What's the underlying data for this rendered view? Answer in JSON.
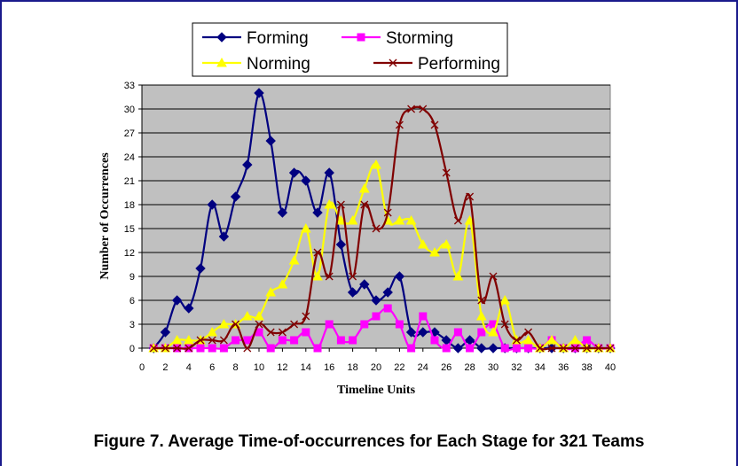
{
  "caption": "Figure 7.  Average Time-of-occurrences for Each Stage for 321 Teams",
  "chart_data": {
    "type": "line",
    "title": "",
    "xlabel": "Timeline Units",
    "ylabel": "Number of Occurrences",
    "xlim": [
      0,
      40
    ],
    "ylim": [
      0,
      33
    ],
    "xticks": [
      0,
      2,
      4,
      6,
      8,
      10,
      12,
      14,
      16,
      18,
      20,
      22,
      24,
      26,
      28,
      30,
      32,
      34,
      36,
      38,
      40
    ],
    "yticks": [
      0,
      3,
      6,
      9,
      12,
      15,
      18,
      21,
      24,
      27,
      30,
      33
    ],
    "grid": "horizontal",
    "background": "#c0c0c0",
    "legend_position": "top-center",
    "x": [
      1,
      2,
      3,
      4,
      5,
      6,
      7,
      8,
      9,
      10,
      11,
      12,
      13,
      14,
      15,
      16,
      17,
      18,
      19,
      20,
      21,
      22,
      23,
      24,
      25,
      26,
      27,
      28,
      29,
      30,
      31,
      32,
      33,
      34,
      35,
      36,
      37,
      38,
      39,
      40
    ],
    "series": [
      {
        "name": "Forming",
        "color": "#000080",
        "marker": "diamond",
        "values": [
          0,
          2,
          6,
          5,
          10,
          18,
          14,
          19,
          23,
          32,
          26,
          17,
          22,
          21,
          17,
          22,
          13,
          7,
          8,
          6,
          7,
          9,
          2,
          2,
          2,
          1,
          0,
          1,
          0,
          0,
          0,
          0,
          0,
          0,
          0,
          0,
          0,
          0,
          0,
          0
        ]
      },
      {
        "name": "Storming",
        "color": "#ff00ff",
        "marker": "square",
        "values": [
          0,
          0,
          0,
          0,
          0,
          0,
          0,
          1,
          1,
          2,
          0,
          1,
          1,
          2,
          0,
          3,
          1,
          1,
          3,
          4,
          5,
          3,
          0,
          4,
          1,
          0,
          2,
          0,
          2,
          3,
          0,
          0,
          0,
          0,
          1,
          0,
          0,
          1,
          0,
          0
        ]
      },
      {
        "name": "Norming",
        "color": "#ffff00",
        "marker": "triangle",
        "values": [
          0,
          0,
          1,
          1,
          1,
          2,
          3,
          3,
          4,
          4,
          7,
          8,
          11,
          15,
          9,
          18,
          16,
          16,
          20,
          23,
          16,
          16,
          16,
          13,
          12,
          13,
          9,
          16,
          4,
          2,
          6,
          1,
          1,
          0,
          1,
          0,
          1,
          0,
          0,
          0
        ]
      },
      {
        "name": "Performing",
        "color": "#800000",
        "marker": "x",
        "values": [
          0,
          0,
          0,
          0,
          1,
          1,
          1,
          3,
          0,
          3,
          2,
          2,
          3,
          4,
          12,
          9,
          18,
          9,
          18,
          15,
          17,
          28,
          30,
          30,
          28,
          22,
          16,
          19,
          6,
          9,
          3,
          1,
          2,
          0,
          0,
          0,
          0,
          0,
          0,
          0
        ]
      }
    ]
  }
}
